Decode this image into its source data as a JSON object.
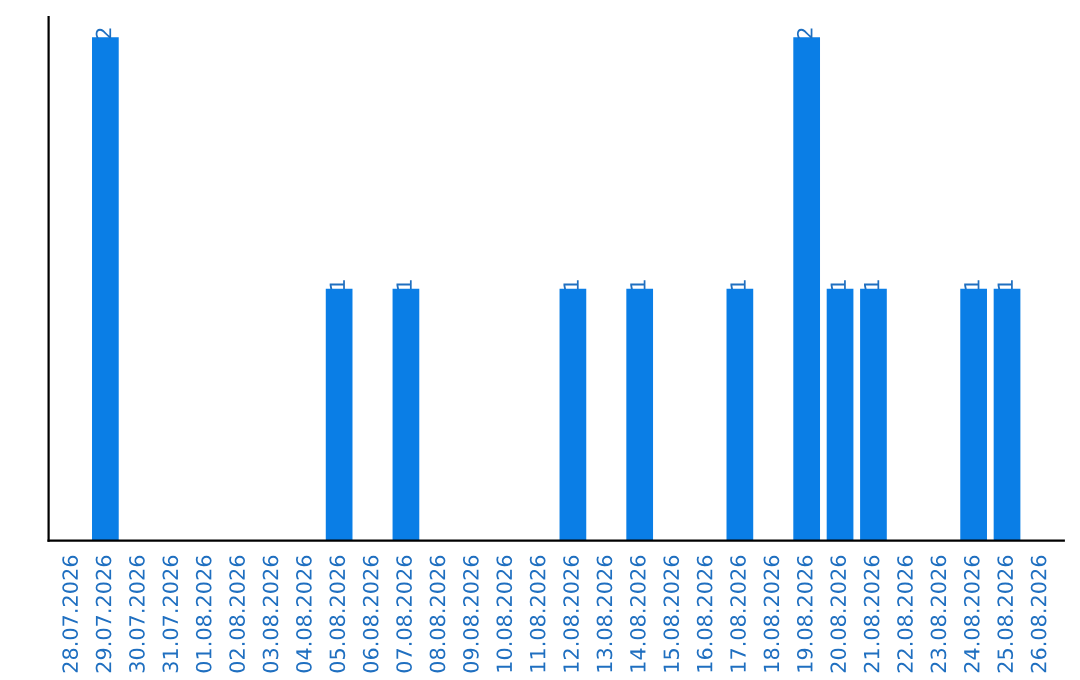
{
  "chart_data": {
    "type": "bar",
    "categories": [
      "28.07.2026",
      "29.07.2026",
      "30.07.2026",
      "31.07.2026",
      "01.08.2026",
      "02.08.2026",
      "03.08.2026",
      "04.08.2026",
      "05.08.2026",
      "06.08.2026",
      "07.08.2026",
      "08.08.2026",
      "09.08.2026",
      "10.08.2026",
      "11.08.2026",
      "12.08.2026",
      "13.08.2026",
      "14.08.2026",
      "15.08.2026",
      "16.08.2026",
      "17.08.2026",
      "18.08.2026",
      "19.08.2026",
      "20.08.2026",
      "21.08.2026",
      "22.08.2026",
      "23.08.2026",
      "24.08.2026",
      "25.08.2026",
      "26.08.2026"
    ],
    "values": [
      0,
      2,
      0,
      0,
      0,
      0,
      0,
      0,
      1,
      0,
      1,
      0,
      0,
      0,
      0,
      1,
      0,
      1,
      0,
      0,
      1,
      0,
      2,
      1,
      1,
      0,
      0,
      1,
      1,
      0
    ],
    "value_labels": [
      null,
      "2",
      null,
      null,
      null,
      null,
      null,
      null,
      "1",
      null,
      "1",
      null,
      null,
      null,
      null,
      "1",
      null,
      "1",
      null,
      null,
      "1",
      null,
      "2",
      "1",
      "1",
      null,
      null,
      "1",
      "1",
      null
    ],
    "color": "#0a7ee6",
    "tick_labels": "x",
    "grid": false,
    "legend": false
  }
}
